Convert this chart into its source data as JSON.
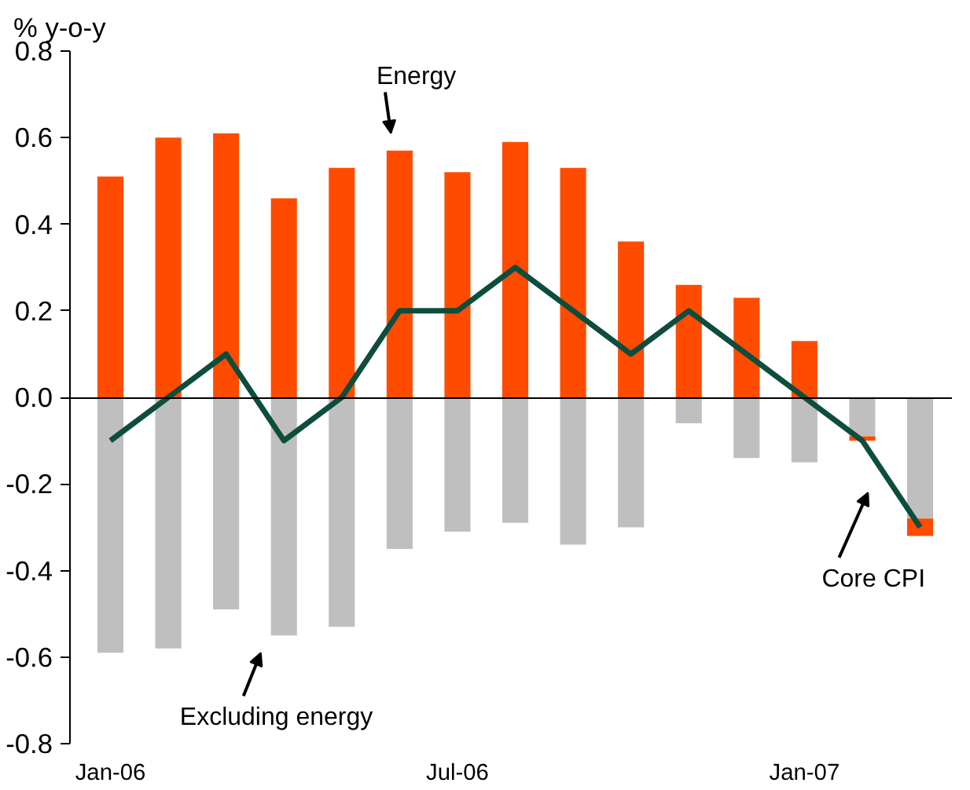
{
  "chart_data": {
    "type": "bar",
    "stacked": true,
    "ylabel": "% y-o-y",
    "categories": [
      "Jan-06",
      null,
      null,
      null,
      null,
      null,
      "Jul-06",
      null,
      null,
      null,
      null,
      null,
      "Jan-07",
      null,
      null
    ],
    "series": [
      {
        "name": "Excluding energy",
        "color": "#bfbfbf",
        "values": [
          -0.59,
          -0.58,
          -0.49,
          -0.55,
          -0.53,
          -0.35,
          -0.31,
          -0.29,
          -0.34,
          -0.3,
          -0.06,
          -0.14,
          -0.15,
          -0.09,
          -0.28
        ]
      },
      {
        "name": "Energy",
        "color": "#ff4b00",
        "values": [
          0.51,
          0.6,
          0.61,
          0.46,
          0.53,
          0.57,
          0.52,
          0.59,
          0.53,
          0.36,
          0.26,
          0.23,
          0.13,
          -0.01,
          -0.04
        ]
      },
      {
        "name": "Core CPI",
        "type": "line",
        "color": "#0d4d3d",
        "values": [
          -0.1,
          0.0,
          0.1,
          -0.1,
          0.0,
          0.2,
          0.2,
          0.3,
          0.2,
          0.1,
          0.2,
          0.1,
          0.0,
          -0.1,
          -0.3
        ]
      }
    ],
    "ylim": [
      -0.8,
      0.8
    ],
    "yticks": [
      {
        "value": -0.8,
        "label": "-0.8"
      },
      {
        "value": -0.6,
        "label": "-0.6"
      },
      {
        "value": -0.4,
        "label": "-0.4"
      },
      {
        "value": -0.2,
        "label": "-0.2"
      },
      {
        "value": 0,
        "label": "0.0"
      },
      {
        "value": 0.2,
        "label": "0.2"
      },
      {
        "value": 0.4,
        "label": "0.4"
      },
      {
        "value": 0.6,
        "label": "0.6"
      },
      {
        "value": 0.8,
        "label": "0.8"
      }
    ]
  }
}
